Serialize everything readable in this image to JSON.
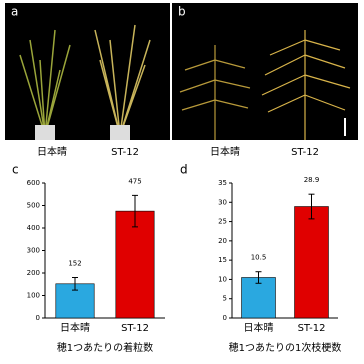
{
  "photos": [
    {
      "letter": "a",
      "labels": [
        "日本晴",
        "ST-12"
      ]
    },
    {
      "letter": "b",
      "labels": [
        "日本晴",
        "ST-12"
      ]
    }
  ],
  "chart_data": [
    {
      "type": "bar",
      "letter": "c",
      "xlabel": "穂1つあたりの着粒数",
      "categories": [
        "日本晴",
        "ST-12"
      ],
      "values": [
        152,
        475
      ],
      "errors": [
        28,
        70
      ],
      "colors": [
        "#2aa8e0",
        "#e00000"
      ],
      "ylim": [
        0,
        600
      ],
      "yticks": [
        0,
        100,
        200,
        300,
        400,
        500,
        600
      ]
    },
    {
      "type": "bar",
      "letter": "d",
      "xlabel": "穂1つあたりの1次枝梗数",
      "categories": [
        "日本晴",
        "ST-12"
      ],
      "values": [
        10.5,
        28.9
      ],
      "value_labels": [
        "10.5",
        "28.9"
      ],
      "errors": [
        1.5,
        3.2
      ],
      "colors": [
        "#2aa8e0",
        "#e00000"
      ],
      "ylim": [
        0,
        35
      ],
      "yticks": [
        0,
        5,
        10,
        15,
        20,
        25,
        30,
        35
      ]
    }
  ]
}
